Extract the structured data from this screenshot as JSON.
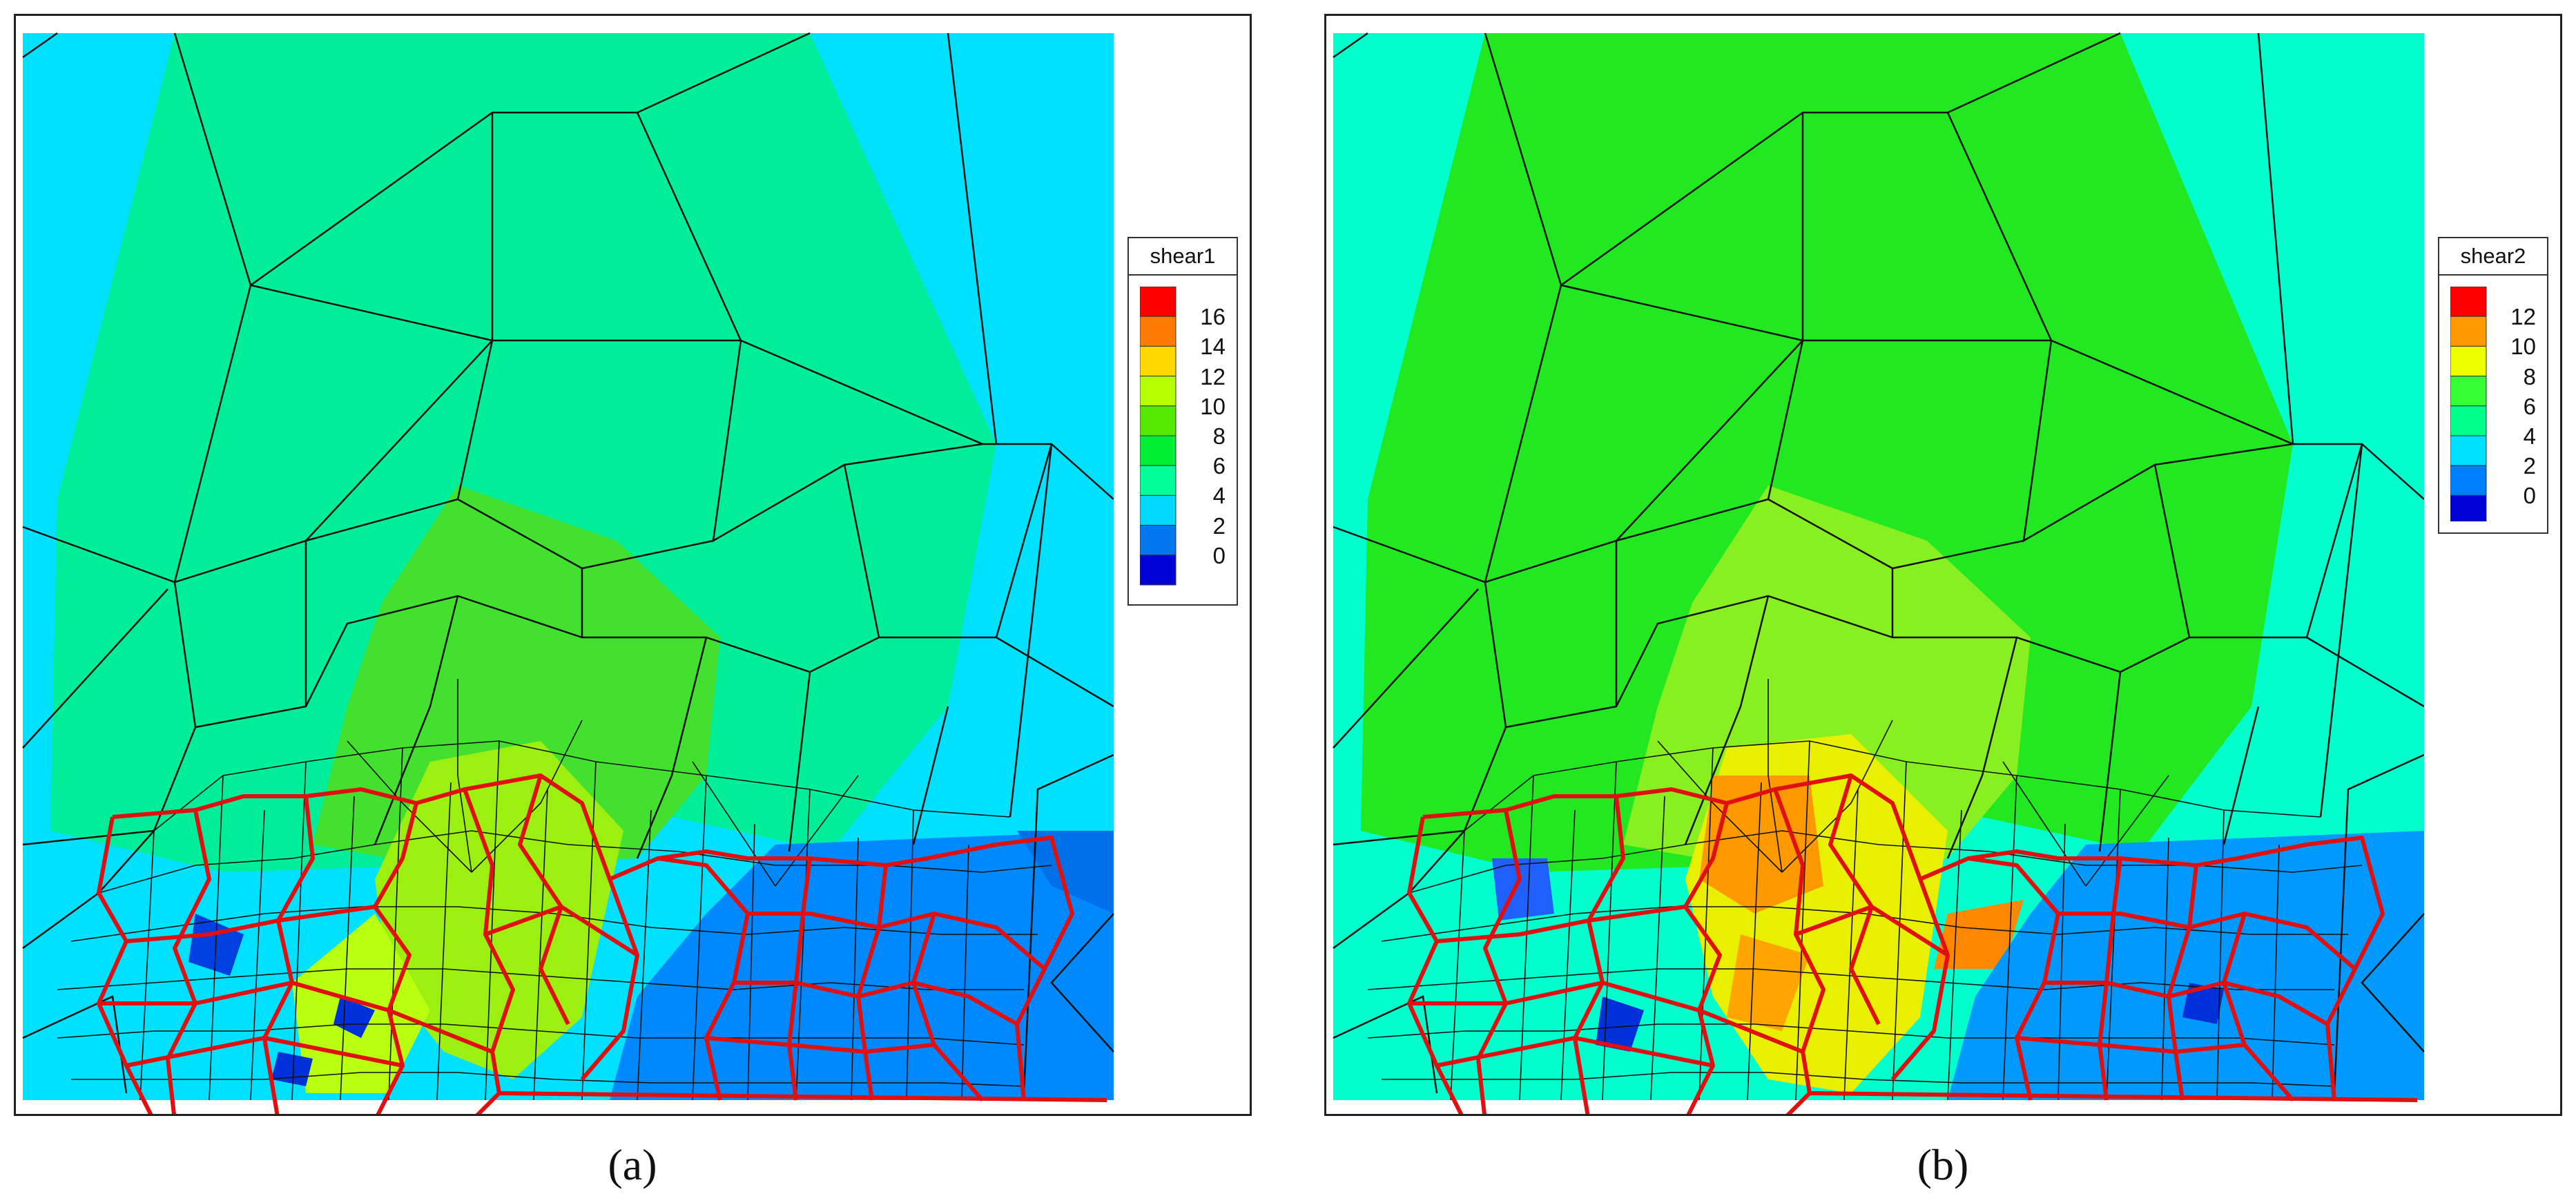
{
  "figure": {
    "panels": [
      {
        "id": "a",
        "caption": "(a)",
        "legend_title": "shear1",
        "legend_labels": [
          "16",
          "14",
          "12",
          "10",
          "8",
          "6",
          "4",
          "2",
          "0"
        ],
        "legend_colors": [
          "#ff0000",
          "#ff7a00",
          "#ffd800",
          "#b4ff00",
          "#55e800",
          "#00ee33",
          "#00ff99",
          "#00d8ff",
          "#0077ee",
          "#0000d8"
        ]
      },
      {
        "id": "b",
        "caption": "(b)",
        "legend_title": "shear2",
        "legend_labels": [
          "12",
          "10",
          "8",
          "6",
          "4",
          "2",
          "0"
        ],
        "legend_colors": [
          "#ff0000",
          "#ff9900",
          "#f0ff00",
          "#33ff33",
          "#00ff88",
          "#00e0ff",
          "#0080ff",
          "#0000d8"
        ]
      }
    ]
  }
}
